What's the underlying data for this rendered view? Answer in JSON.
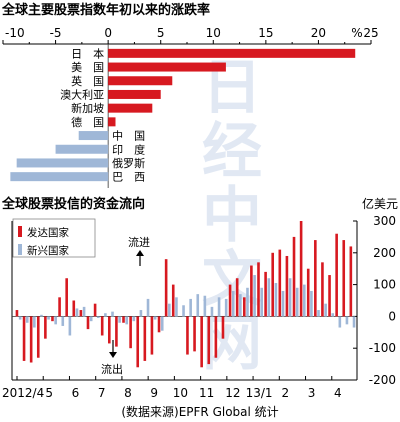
{
  "watermark": "日经中文网",
  "charts": [
    {
      "title": "全球主要股票指数年初以来的涨跌率",
      "unit": "%"
    },
    {
      "title": "全球股票投信的资金流向",
      "unit": "亿美元"
    }
  ],
  "chart_data": [
    {
      "type": "bar",
      "orientation": "horizontal",
      "title": "全球主要股票指数年初以来的涨跌率",
      "xlabel": "%",
      "xlim": [
        -10,
        25
      ],
      "xticks": [
        -10,
        -5,
        0,
        5,
        10,
        15,
        20,
        25
      ],
      "categories": [
        "日　本",
        "美　国",
        "英　国",
        "澳大利亚",
        "新加坡",
        "德　国",
        "中　国",
        "印　度",
        "俄罗斯",
        "巴　西"
      ],
      "values": [
        23.5,
        11.2,
        6.1,
        5.0,
        4.2,
        0.7,
        -2.8,
        -5.0,
        -8.7,
        -9.3
      ],
      "colors": {
        "positive": "#d71920",
        "negative": "#9fb7d7"
      },
      "grid": false
    },
    {
      "type": "bar",
      "title": "全球股票投信的资金流向",
      "ylabel": "亿美元",
      "ylim": [
        -200,
        300
      ],
      "yticks": [
        -200,
        -100,
        0,
        100,
        200,
        300
      ],
      "x_labels": [
        "2012/4",
        "5",
        "6",
        "7",
        "8",
        "9",
        "10",
        "11",
        "12",
        "13/1",
        "2",
        "3",
        "4"
      ],
      "series": [
        {
          "name": "发达国家",
          "color": "#d71920",
          "values": [
            20,
            -140,
            -145,
            -130,
            -70,
            -15,
            60,
            120,
            50,
            20,
            -40,
            40,
            -60,
            -85,
            -95,
            -20,
            -100,
            -160,
            -140,
            -120,
            -50,
            180,
            100,
            0,
            -120,
            -110,
            -160,
            -150,
            -130,
            -70,
            100,
            120,
            60,
            160,
            170,
            140,
            200,
            210,
            190,
            250,
            300,
            150,
            240,
            170,
            130,
            260,
            240,
            220
          ]
        },
        {
          "name": "新兴国家",
          "color": "#9fb7d7",
          "values": [
            -10,
            -20,
            -35,
            5,
            -10,
            -25,
            -30,
            -60,
            25,
            30,
            -15,
            -5,
            10,
            15,
            -20,
            -25,
            -15,
            20,
            55,
            -10,
            -45,
            40,
            60,
            35,
            55,
            70,
            65,
            30,
            60,
            55,
            80,
            70,
            90,
            130,
            90,
            120,
            105,
            80,
            120,
            90,
            100,
            80,
            20,
            40,
            10,
            -35,
            -25,
            -35
          ]
        }
      ],
      "annotations": [
        "流进",
        "流出"
      ],
      "grid": false
    }
  ],
  "source_note": "(数据来源)EPFR Global 统计"
}
